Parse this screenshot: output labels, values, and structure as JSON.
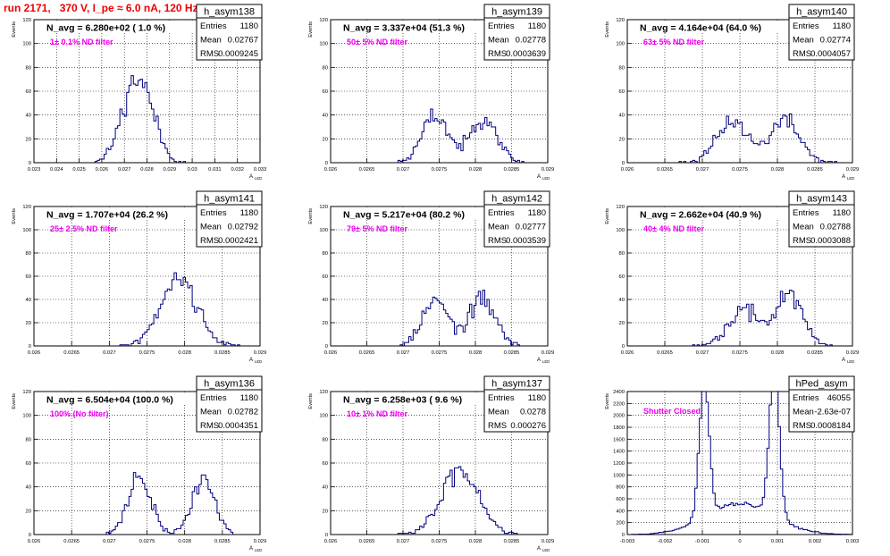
{
  "title": "run 2171,   370 V, I_pe ≈ 6.0 nA, 120 Hz",
  "stats_labels": {
    "entries": "Entries",
    "mean": "Mean",
    "rms": "RMS"
  },
  "colors": {
    "title": "#ee0000",
    "annotation": "#ee00ee",
    "histogram": "#000080",
    "frame": "#000000",
    "grid": "#000000"
  },
  "chart_data": [
    {
      "type": "bar",
      "name": "h_asym138",
      "navg": "N_avg = 6.280e+02 ( 1.0 %)",
      "annotation": "1± 0.1% ND filter",
      "entries": "1180",
      "mean": "0.02767",
      "rms": "0.0009245",
      "xlabel": "A",
      "xlabel_sub": "LED",
      "ylabel": "Events",
      "xlim": [
        0.023,
        0.033
      ],
      "ylim": [
        0,
        120
      ],
      "xticks": [
        0.023,
        0.024,
        0.025,
        0.026,
        0.027,
        0.028,
        0.029,
        0.03,
        0.031,
        0.032,
        0.033
      ],
      "xtick_labels": [
        "0.023",
        "0.024",
        "0.025",
        "0.026",
        "0.027",
        "0.028",
        "0.029",
        "0.03",
        "0.031",
        "0.032",
        "0.033"
      ],
      "yticks": [
        0,
        20,
        40,
        60,
        80,
        100,
        120
      ],
      "ytick_labels": [
        "0",
        "20",
        "40",
        "60",
        "80",
        "100",
        "120"
      ],
      "peaks": [
        {
          "c": 0.02727,
          "s": 0.00055,
          "a": 28
        },
        {
          "c": 0.02795,
          "s": 0.00055,
          "a": 26
        }
      ],
      "count": 1180,
      "bins": 100,
      "seed": 11
    },
    {
      "type": "bar",
      "name": "h_asym139",
      "navg": "N_avg = 3.337e+04 (51.3 %)",
      "annotation": "50± 5% ND filter",
      "entries": "1180",
      "mean": "0.02778",
      "rms": "0.0003639",
      "xlabel": "A",
      "xlabel_sub": "LED",
      "ylabel": "Events",
      "xlim": [
        0.026,
        0.029
      ],
      "ylim": [
        0,
        120
      ],
      "xticks": [
        0.026,
        0.0265,
        0.027,
        0.0275,
        0.028,
        0.0285,
        0.029
      ],
      "xtick_labels": [
        "0.026",
        "0.0265",
        "0.027",
        "0.0275",
        "0.028",
        "0.0285",
        "0.029"
      ],
      "yticks": [
        0,
        20,
        40,
        60,
        80,
        100,
        120
      ],
      "ytick_labels": [
        "0",
        "20",
        "40",
        "60",
        "80",
        "100",
        "120"
      ],
      "peaks": [
        {
          "c": 0.02745,
          "s": 0.00018,
          "a": 42
        },
        {
          "c": 0.02812,
          "s": 0.00018,
          "a": 42
        }
      ],
      "count": 1180,
      "bins": 100,
      "seed": 23
    },
    {
      "type": "bar",
      "name": "h_asym140",
      "navg": "N_avg = 4.164e+04 (64.0 %)",
      "annotation": "63± 5% ND filter",
      "entries": "1180",
      "mean": "0.02774",
      "rms": "0.0004057",
      "xlabel": "A",
      "xlabel_sub": "LED",
      "ylabel": "Events",
      "xlim": [
        0.026,
        0.029
      ],
      "ylim": [
        0,
        120
      ],
      "xticks": [
        0.026,
        0.0265,
        0.027,
        0.0275,
        0.028,
        0.0285,
        0.029
      ],
      "xtick_labels": [
        "0.026",
        "0.0265",
        "0.027",
        "0.0275",
        "0.028",
        "0.0285",
        "0.029"
      ],
      "yticks": [
        0,
        20,
        40,
        60,
        80,
        100,
        120
      ],
      "ytick_labels": [
        "0",
        "20",
        "40",
        "60",
        "80",
        "100",
        "120"
      ],
      "peaks": [
        {
          "c": 0.0274,
          "s": 0.0002,
          "a": 38
        },
        {
          "c": 0.0281,
          "s": 0.0002,
          "a": 38
        }
      ],
      "count": 1180,
      "bins": 100,
      "seed": 37
    },
    {
      "type": "bar",
      "name": "h_asym141",
      "navg": "N_avg = 1.707e+04 (26.2 %)",
      "annotation": "25± 2.5% ND filter",
      "entries": "1180",
      "mean": "0.02792",
      "rms": "0.0002421",
      "xlabel": "A",
      "xlabel_sub": "LED",
      "ylabel": "Events",
      "xlim": [
        0.026,
        0.029
      ],
      "ylim": [
        0,
        120
      ],
      "xticks": [
        0.026,
        0.0265,
        0.027,
        0.0275,
        0.028,
        0.0285,
        0.029
      ],
      "xtick_labels": [
        "0.026",
        "0.0265",
        "0.027",
        "0.0275",
        "0.028",
        "0.0285",
        "0.029"
      ],
      "yticks": [
        0,
        20,
        40,
        60,
        80,
        100,
        120
      ],
      "ytick_labels": [
        "0",
        "20",
        "40",
        "60",
        "80",
        "100",
        "120"
      ],
      "peaks": [
        {
          "c": 0.02792,
          "s": 0.00024,
          "a": 60
        }
      ],
      "count": 1180,
      "bins": 100,
      "seed": 41
    },
    {
      "type": "bar",
      "name": "h_asym142",
      "navg": "N_avg = 5.217e+04 (80.2 %)",
      "annotation": "79± 5% ND filter",
      "entries": "1180",
      "mean": "0.02777",
      "rms": "0.0003539",
      "xlabel": "A",
      "xlabel_sub": "LED",
      "ylabel": "Events",
      "xlim": [
        0.026,
        0.029
      ],
      "ylim": [
        0,
        120
      ],
      "xticks": [
        0.026,
        0.0265,
        0.027,
        0.0275,
        0.028,
        0.0285,
        0.029
      ],
      "xtick_labels": [
        "0.026",
        "0.0265",
        "0.027",
        "0.0275",
        "0.028",
        "0.0285",
        "0.029"
      ],
      "yticks": [
        0,
        20,
        40,
        60,
        80,
        100,
        120
      ],
      "ytick_labels": [
        "0",
        "20",
        "40",
        "60",
        "80",
        "100",
        "120"
      ],
      "peaks": [
        {
          "c": 0.02745,
          "s": 0.00018,
          "a": 44
        },
        {
          "c": 0.0281,
          "s": 0.00018,
          "a": 46
        }
      ],
      "count": 1180,
      "bins": 100,
      "seed": 53
    },
    {
      "type": "bar",
      "name": "h_asym143",
      "navg": "N_avg = 2.662e+04 (40.9 %)",
      "annotation": "40± 4% ND filter",
      "entries": "1180",
      "mean": "0.02788",
      "rms": "0.0003088",
      "xlabel": "A",
      "xlabel_sub": "LED",
      "ylabel": "Events",
      "xlim": [
        0.026,
        0.029
      ],
      "ylim": [
        0,
        120
      ],
      "xticks": [
        0.026,
        0.0265,
        0.027,
        0.0275,
        0.028,
        0.0285,
        0.029
      ],
      "xtick_labels": [
        "0.026",
        "0.0265",
        "0.027",
        "0.0275",
        "0.028",
        "0.0285",
        "0.029"
      ],
      "yticks": [
        0,
        20,
        40,
        60,
        80,
        100,
        120
      ],
      "ytick_labels": [
        "0",
        "20",
        "40",
        "60",
        "80",
        "100",
        "120"
      ],
      "peaks": [
        {
          "c": 0.02755,
          "s": 0.0002,
          "a": 34
        },
        {
          "c": 0.02815,
          "s": 0.00018,
          "a": 50
        }
      ],
      "count": 1180,
      "bins": 100,
      "seed": 67
    },
    {
      "type": "bar",
      "name": "h_asym136",
      "navg": "N_avg = 6.504e+04 (100.0 %)",
      "annotation": "100% (No filter)",
      "entries": "1180",
      "mean": "0.02782",
      "rms": "0.0004351",
      "xlabel": "A",
      "xlabel_sub": "LED",
      "ylabel": "Events",
      "xlim": [
        0.026,
        0.029
      ],
      "ylim": [
        0,
        120
      ],
      "xticks": [
        0.026,
        0.0265,
        0.027,
        0.0275,
        0.028,
        0.0285,
        0.029
      ],
      "xtick_labels": [
        "0.026",
        "0.0265",
        "0.027",
        "0.0275",
        "0.028",
        "0.0285",
        "0.029"
      ],
      "yticks": [
        0,
        20,
        40,
        60,
        80,
        100,
        120
      ],
      "ytick_labels": [
        "0",
        "20",
        "40",
        "60",
        "80",
        "100",
        "120"
      ],
      "peaks": [
        {
          "c": 0.0274,
          "s": 0.00015,
          "a": 56
        },
        {
          "c": 0.02825,
          "s": 0.00015,
          "a": 55
        }
      ],
      "count": 1180,
      "bins": 100,
      "seed": 71
    },
    {
      "type": "bar",
      "name": "h_asym137",
      "navg": "N_avg = 6.258e+03 ( 9.6 %)",
      "annotation": "10± 1% ND filter",
      "entries": "1180",
      "mean": "0.0278",
      "rms": "0.000276",
      "xlabel": "A",
      "xlabel_sub": "LED",
      "ylabel": "Events",
      "xlim": [
        0.026,
        0.029
      ],
      "ylim": [
        0,
        120
      ],
      "xticks": [
        0.026,
        0.0265,
        0.027,
        0.0275,
        0.028,
        0.0285,
        0.029
      ],
      "xtick_labels": [
        "0.026",
        "0.0265",
        "0.027",
        "0.0275",
        "0.028",
        "0.0285",
        "0.029"
      ],
      "yticks": [
        0,
        20,
        40,
        60,
        80,
        100,
        120
      ],
      "ytick_labels": [
        "0",
        "20",
        "40",
        "60",
        "80",
        "100",
        "120"
      ],
      "peaks": [
        {
          "c": 0.0278,
          "s": 0.00026,
          "a": 52
        }
      ],
      "count": 1180,
      "bins": 100,
      "seed": 83
    },
    {
      "type": "bar",
      "name": "hPed_asym",
      "navg": "",
      "annotation": "Shutter Closed",
      "entries": "46055",
      "mean": "-2.63e-07",
      "rms": "0.0008184",
      "xlabel": "",
      "xlabel_sub": "",
      "ylabel": "Events",
      "xlim": [
        -0.003,
        0.003
      ],
      "ylim": [
        0,
        2400
      ],
      "xticks": [
        -0.003,
        -0.002,
        -0.001,
        0,
        0.001,
        0.002,
        0.003
      ],
      "xtick_labels": [
        "-0.003",
        "-0.002",
        "-0.001",
        "0",
        "0.001",
        "0.002",
        "0.003"
      ],
      "yticks": [
        0,
        200,
        400,
        600,
        800,
        1000,
        1200,
        1400,
        1600,
        1800,
        2000,
        2200,
        2400
      ],
      "ytick_labels": [
        "0",
        "200",
        "400",
        "600",
        "800",
        "1000",
        "1200",
        "1400",
        "1600",
        "1800",
        "2000",
        "2200",
        "2400"
      ],
      "peaks": [
        {
          "c": -0.00095,
          "s": 0.00013,
          "a": 1700
        },
        {
          "c": 0.00092,
          "s": 0.00013,
          "a": 1900
        },
        {
          "c": 0,
          "s": 0.0009,
          "a": 380
        }
      ],
      "count": 46055,
      "bins": 100,
      "seed": 97
    }
  ]
}
